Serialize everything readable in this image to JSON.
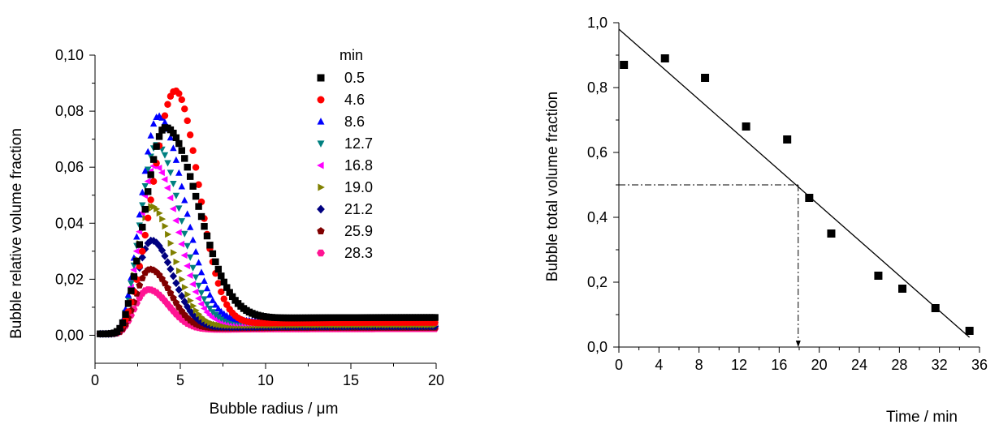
{
  "chart_data": [
    {
      "type": "scatter",
      "xlabel": "Bubble radius / μm",
      "ylabel": "Bubble relative volume fraction",
      "xlim": [
        0,
        20
      ],
      "ylim": [
        -0.01,
        0.1
      ],
      "xticks": [
        0,
        5,
        10,
        15,
        20
      ],
      "xtick_labels": [
        "0",
        "5",
        "10",
        "15",
        "20"
      ],
      "yticks": [
        0,
        0.02,
        0.04,
        0.06,
        0.08,
        0.1
      ],
      "ytick_labels": [
        "0,00",
        "0,02",
        "0,04",
        "0,06",
        "0,08",
        "0,10"
      ],
      "legend_title": "min",
      "legend_placement": "top-right",
      "series": [
        {
          "name": "0.5",
          "marker": "square",
          "color": "#000000",
          "peak_x": 4.1,
          "peak_y": 0.07,
          "tail_y": 0.0065,
          "width_left": 1.15,
          "width_right": 1.9
        },
        {
          "name": "4.6",
          "marker": "circle",
          "color": "#ff0000",
          "peak_x": 4.7,
          "peak_y": 0.084,
          "tail_y": 0.0045,
          "width_left": 1.3,
          "width_right": 1.35
        },
        {
          "name": "8.6",
          "marker": "triangle-up",
          "color": "#0000ff",
          "peak_x": 3.7,
          "peak_y": 0.075,
          "tail_y": 0.0055,
          "width_left": 1.0,
          "width_right": 1.5
        },
        {
          "name": "12.7",
          "marker": "triangle-down",
          "color": "#008080",
          "peak_x": 3.6,
          "peak_y": 0.065,
          "tail_y": 0.005,
          "width_left": 0.95,
          "width_right": 1.4
        },
        {
          "name": "16.8",
          "marker": "triangle-left",
          "color": "#ff00ff",
          "peak_x": 3.5,
          "peak_y": 0.058,
          "tail_y": 0.0045,
          "width_left": 0.9,
          "width_right": 1.35
        },
        {
          "name": "19.0",
          "marker": "triangle-right",
          "color": "#808000",
          "peak_x": 3.3,
          "peak_y": 0.044,
          "tail_y": 0.0035,
          "width_left": 0.85,
          "width_right": 1.3
        },
        {
          "name": "21.2",
          "marker": "diamond",
          "color": "#000080",
          "peak_x": 3.3,
          "peak_y": 0.032,
          "tail_y": 0.003,
          "width_left": 0.85,
          "width_right": 1.25
        },
        {
          "name": "25.9",
          "marker": "pentagon",
          "color": "#800000",
          "peak_x": 3.2,
          "peak_y": 0.022,
          "tail_y": 0.0025,
          "width_left": 0.8,
          "width_right": 1.2
        },
        {
          "name": "28.3",
          "marker": "hexagon",
          "color": "#ff1493",
          "peak_x": 3.1,
          "peak_y": 0.015,
          "tail_y": 0.002,
          "width_left": 0.8,
          "width_right": 1.2
        }
      ]
    },
    {
      "type": "scatter",
      "xlabel": "Time / min",
      "ylabel": "Bubble total volume fraction",
      "xlim": [
        0,
        36
      ],
      "ylim": [
        0,
        1.0
      ],
      "xticks": [
        0,
        4,
        8,
        12,
        16,
        20,
        24,
        28,
        32,
        36
      ],
      "xtick_labels": [
        "0",
        "4",
        "8",
        "12",
        "16",
        "20",
        "24",
        "28",
        "32",
        "36"
      ],
      "yticks": [
        0,
        0.2,
        0.4,
        0.6,
        0.8,
        1.0
      ],
      "ytick_labels": [
        "0,0",
        "0,2",
        "0,4",
        "0,6",
        "0,8",
        "1,0"
      ],
      "points": {
        "x": [
          0.5,
          4.6,
          8.6,
          12.7,
          16.8,
          19.0,
          21.2,
          25.9,
          28.3,
          31.6,
          35.0
        ],
        "y": [
          0.87,
          0.89,
          0.83,
          0.68,
          0.64,
          0.46,
          0.35,
          0.22,
          0.18,
          0.12,
          0.05
        ]
      },
      "fit_line": {
        "x": [
          0,
          35
        ],
        "y": [
          0.98,
          0.03
        ]
      },
      "half_life_guide": {
        "x": 17.9,
        "y": 0.5
      },
      "marker": "square",
      "color": "#000000"
    }
  ]
}
